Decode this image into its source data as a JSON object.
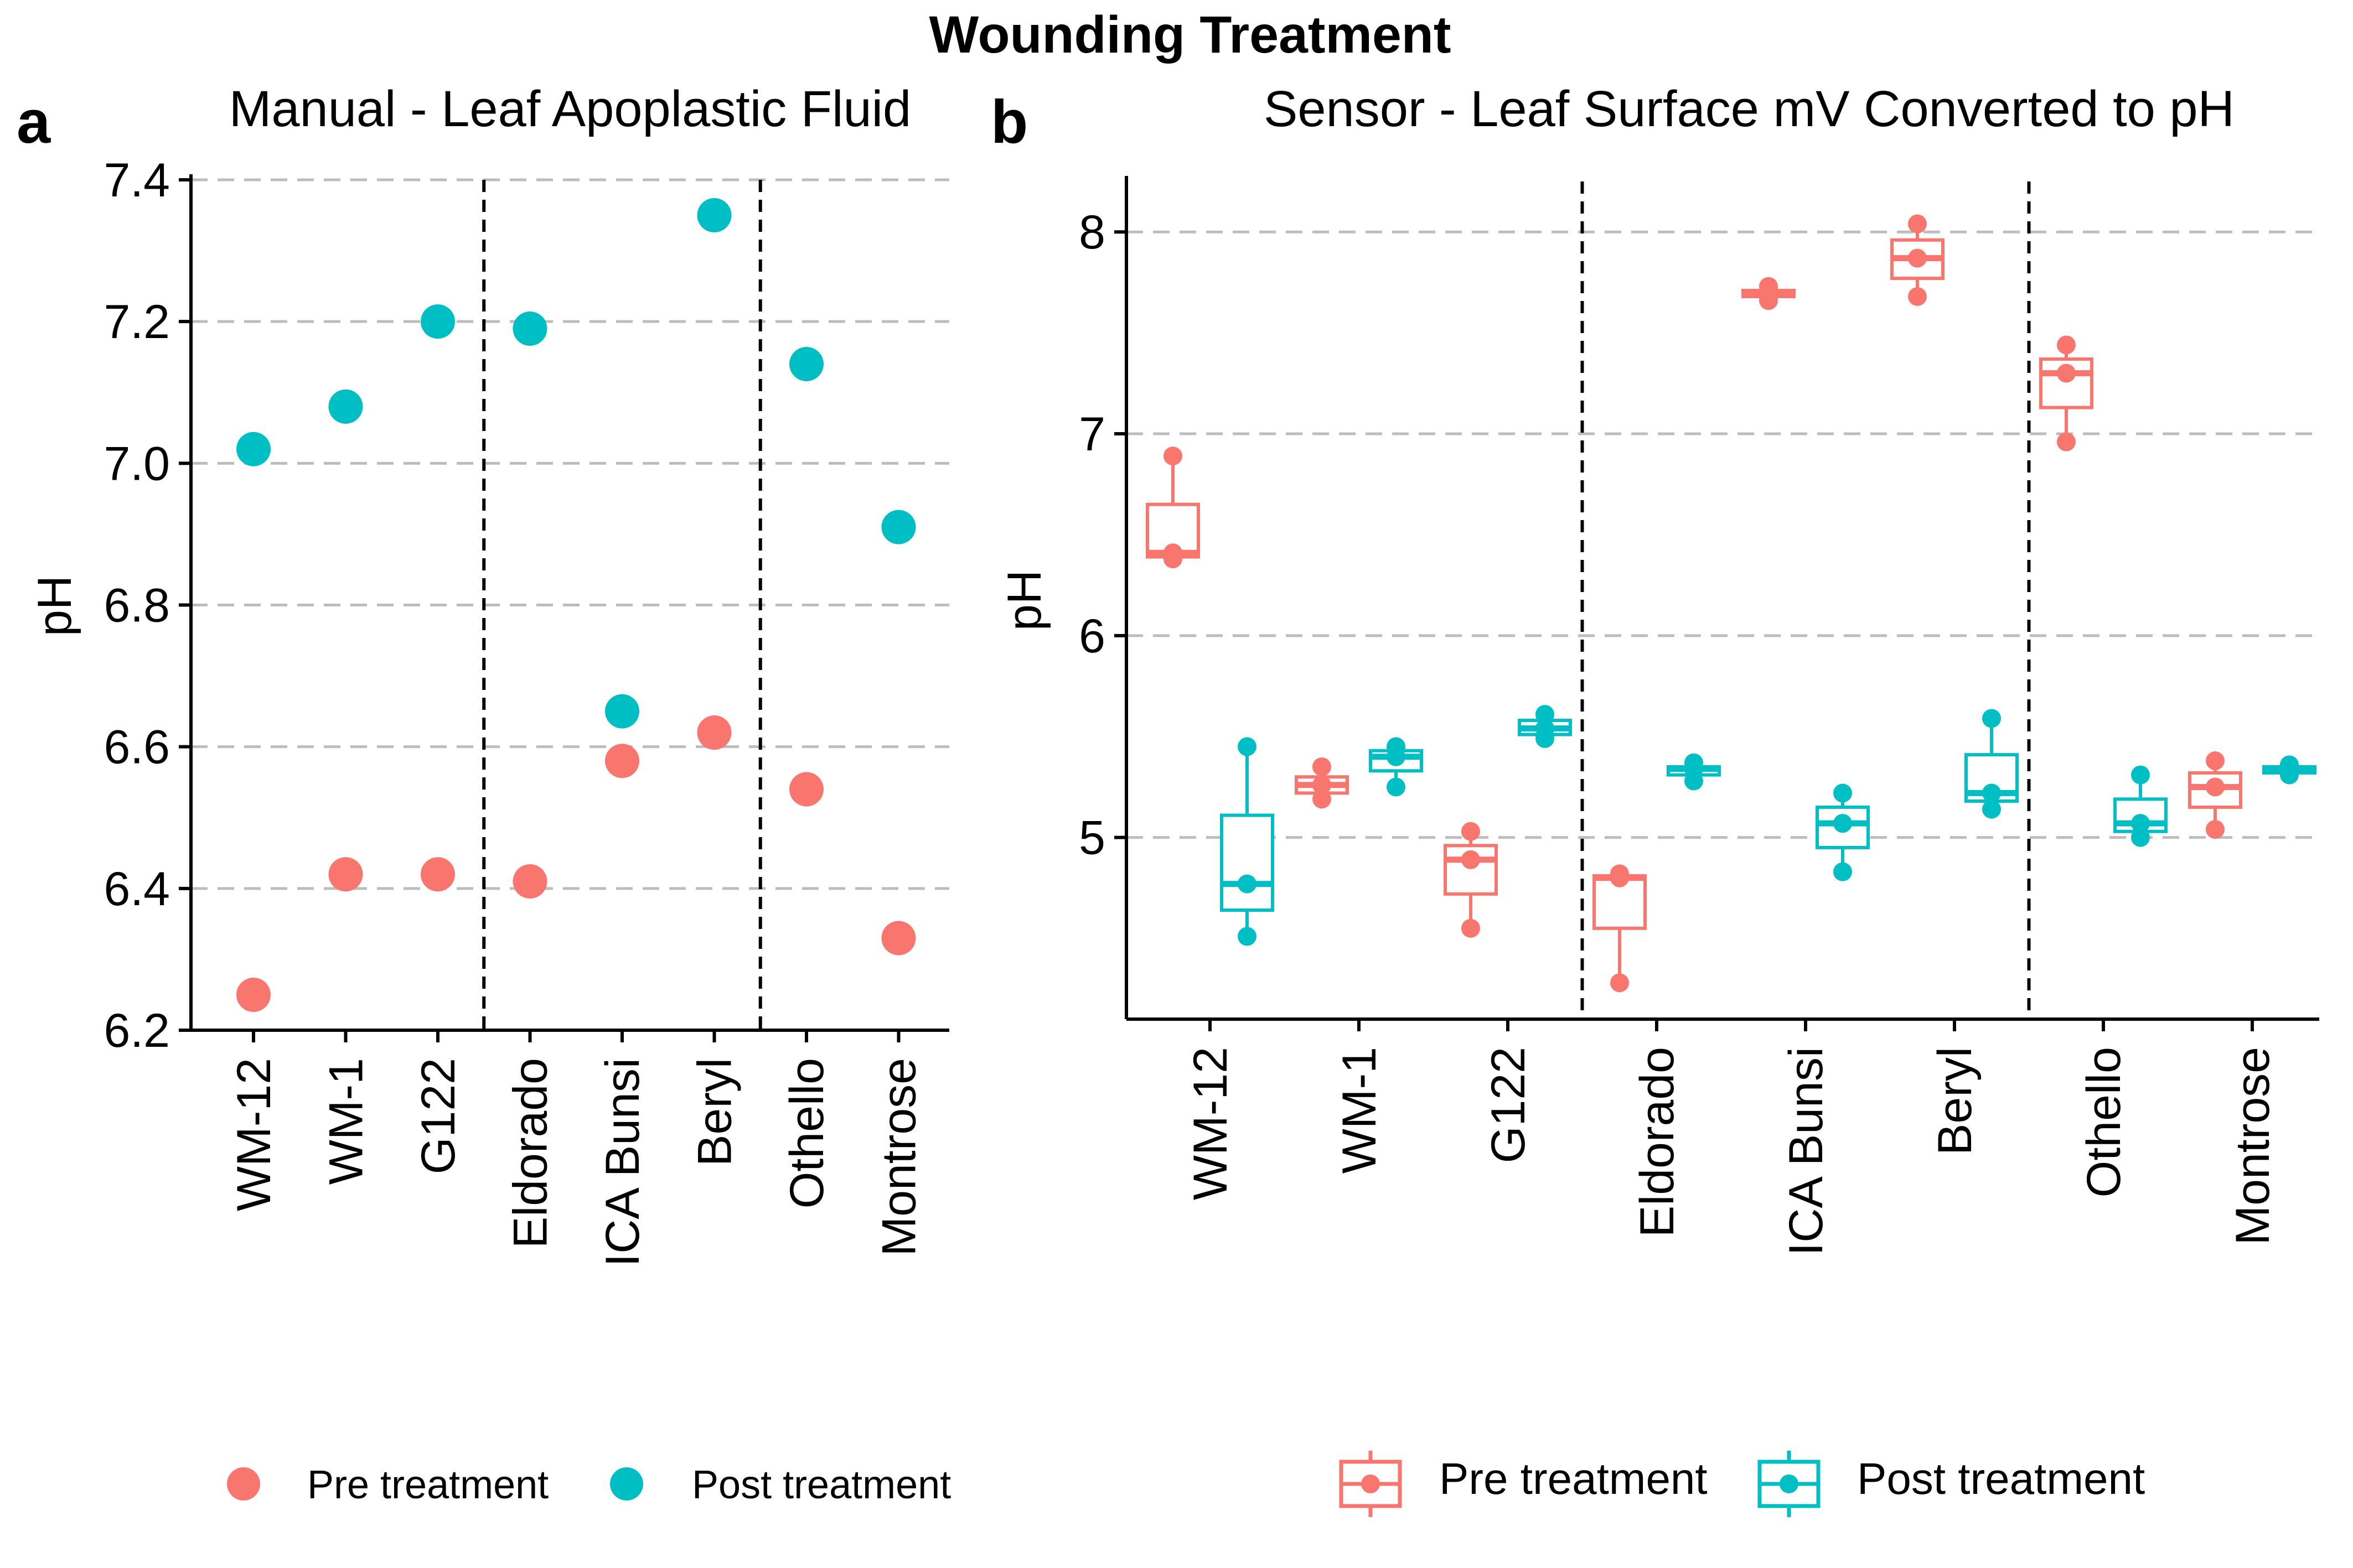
{
  "figure": {
    "title": "Wounding Treatment"
  },
  "colors": {
    "pre": "#F8766D",
    "post": "#00BFC4"
  },
  "chart_data": [
    {
      "panel_label": "a",
      "type": "scatter",
      "title": "Manual - Leaf Apoplastic Fluid",
      "xlabel": "",
      "ylabel": "pH",
      "ylim": [
        6.2,
        7.4
      ],
      "yticks": [
        "6.2",
        "6.4",
        "6.6",
        "6.8",
        "7.0",
        "7.2",
        "7.4"
      ],
      "grid": "horizontal dashed",
      "legend_position": "bottom",
      "categories": [
        "WM-12",
        "WM-1",
        "G122",
        "Eldorado",
        "ICA Bunsi",
        "Beryl",
        "Othello",
        "Montrose"
      ],
      "group_separators_after": [
        "G122",
        "Beryl"
      ],
      "series": [
        {
          "name": "Pre treatment",
          "color": "#F8766D",
          "values": [
            6.25,
            6.42,
            6.42,
            6.41,
            6.58,
            6.62,
            6.54,
            6.33
          ]
        },
        {
          "name": "Post treatment",
          "color": "#00BFC4",
          "values": [
            7.02,
            7.08,
            7.2,
            7.19,
            6.65,
            7.35,
            7.14,
            6.91
          ]
        }
      ]
    },
    {
      "panel_label": "b",
      "type": "box",
      "title": "Sensor - Leaf Surface mV Converted to pH",
      "xlabel": "",
      "ylabel": "pH",
      "ylim": [
        4.1,
        8.25
      ],
      "yticks": [
        "5",
        "6",
        "7",
        "8"
      ],
      "grid": "horizontal dashed",
      "legend_position": "bottom",
      "categories": [
        "WM-12",
        "WM-1",
        "G122",
        "Eldorado",
        "ICA Bunsi",
        "Beryl",
        "Othello",
        "Montrose"
      ],
      "group_separators_after": [
        "G122",
        "Beryl"
      ],
      "series": [
        {
          "name": "Pre treatment",
          "color": "#F8766D",
          "boxes": [
            {
              "min": 6.38,
              "q1": 6.39,
              "median": 6.41,
              "q3": 6.65,
              "max": 6.89,
              "points": [
                6.38,
                6.41,
                6.89
              ]
            },
            {
              "min": 5.19,
              "q1": 5.22,
              "median": 5.26,
              "q3": 5.3,
              "max": 5.35,
              "points": [
                5.19,
                5.26,
                5.35
              ]
            },
            {
              "min": 4.55,
              "q1": 4.72,
              "median": 4.89,
              "q3": 4.96,
              "max": 5.03,
              "points": [
                4.55,
                4.89,
                5.03
              ]
            },
            {
              "min": 4.28,
              "q1": 4.55,
              "median": 4.8,
              "q3": 4.81,
              "max": 4.82,
              "points": [
                4.28,
                4.8,
                4.82
              ]
            },
            {
              "min": 7.66,
              "q1": 7.68,
              "median": 7.7,
              "q3": 7.71,
              "max": 7.73,
              "points": [
                7.66,
                7.7,
                7.73
              ]
            },
            {
              "min": 7.68,
              "q1": 7.77,
              "median": 7.87,
              "q3": 7.96,
              "max": 8.04,
              "points": [
                7.68,
                7.87,
                8.04
              ]
            },
            {
              "min": 6.96,
              "q1": 7.13,
              "median": 7.3,
              "q3": 7.37,
              "max": 7.44,
              "points": [
                6.96,
                7.3,
                7.44
              ]
            },
            {
              "min": 5.04,
              "q1": 5.15,
              "median": 5.25,
              "q3": 5.32,
              "max": 5.38,
              "points": [
                5.04,
                5.25,
                5.38
              ]
            }
          ]
        },
        {
          "name": "Post treatment",
          "color": "#00BFC4",
          "boxes": [
            {
              "min": 4.51,
              "q1": 4.64,
              "median": 4.77,
              "q3": 5.11,
              "max": 5.45,
              "points": [
                4.51,
                4.77,
                5.45
              ]
            },
            {
              "min": 5.25,
              "q1": 5.33,
              "median": 5.4,
              "q3": 5.43,
              "max": 5.45,
              "points": [
                5.25,
                5.4,
                5.45
              ]
            },
            {
              "min": 5.49,
              "q1": 5.51,
              "median": 5.54,
              "q3": 5.58,
              "max": 5.61,
              "points": [
                5.49,
                5.54,
                5.61
              ]
            },
            {
              "min": 5.28,
              "q1": 5.31,
              "median": 5.34,
              "q3": 5.35,
              "max": 5.37,
              "points": [
                5.28,
                5.34,
                5.37
              ]
            },
            {
              "min": 4.83,
              "q1": 4.95,
              "median": 5.07,
              "q3": 5.15,
              "max": 5.22,
              "points": [
                4.83,
                5.07,
                5.22
              ]
            },
            {
              "min": 5.14,
              "q1": 5.18,
              "median": 5.22,
              "q3": 5.41,
              "max": 5.59,
              "points": [
                5.14,
                5.22,
                5.59
              ]
            },
            {
              "min": 5.0,
              "q1": 5.03,
              "median": 5.07,
              "q3": 5.19,
              "max": 5.31,
              "points": [
                5.0,
                5.07,
                5.31
              ]
            },
            {
              "min": 5.31,
              "q1": 5.32,
              "median": 5.34,
              "q3": 5.35,
              "max": 5.36,
              "points": [
                5.31,
                5.34,
                5.36
              ]
            }
          ]
        }
      ]
    }
  ]
}
